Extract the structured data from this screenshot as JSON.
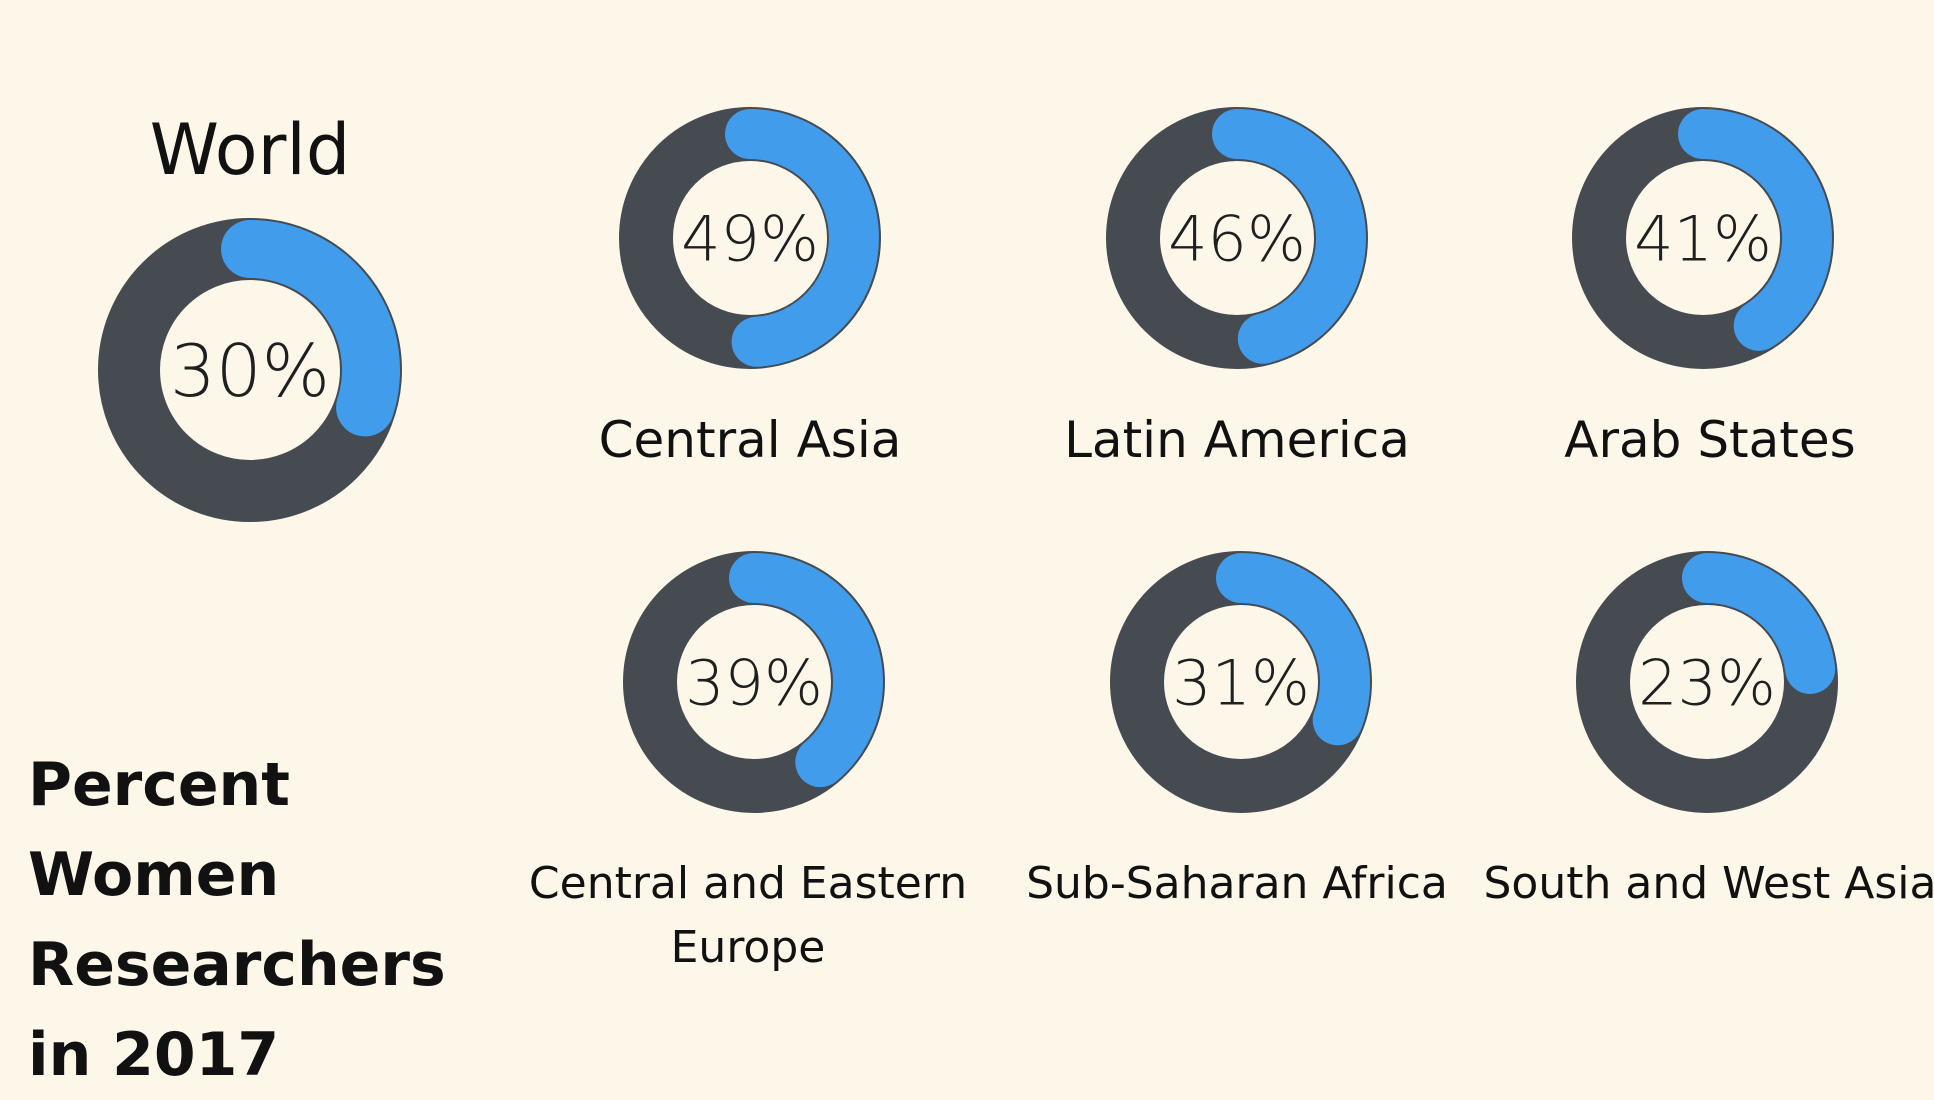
{
  "colors": {
    "background": "#fdf7ea",
    "ring": "#464b52",
    "share": "#429cec",
    "text": "#111111"
  },
  "title": "Percent Women Researchers in 2017",
  "chart_data": {
    "type": "pie",
    "title": "Percent Women Researchers in 2017",
    "unit": "%",
    "items": [
      {
        "name": "World",
        "value": 30,
        "value_label": "30%"
      },
      {
        "name": "Central Asia",
        "value": 49,
        "value_label": "49%"
      },
      {
        "name": "Latin America",
        "value": 46,
        "value_label": "46%"
      },
      {
        "name": "Arab States",
        "value": 41,
        "value_label": "41%"
      },
      {
        "name": "Central and Eastern Europe",
        "value": 39,
        "value_label": "39%"
      },
      {
        "name": "Sub-Saharan Africa",
        "value": 31,
        "value_label": "31%"
      },
      {
        "name": "South and West Asia",
        "value": 23,
        "value_label": "23%"
      }
    ]
  }
}
